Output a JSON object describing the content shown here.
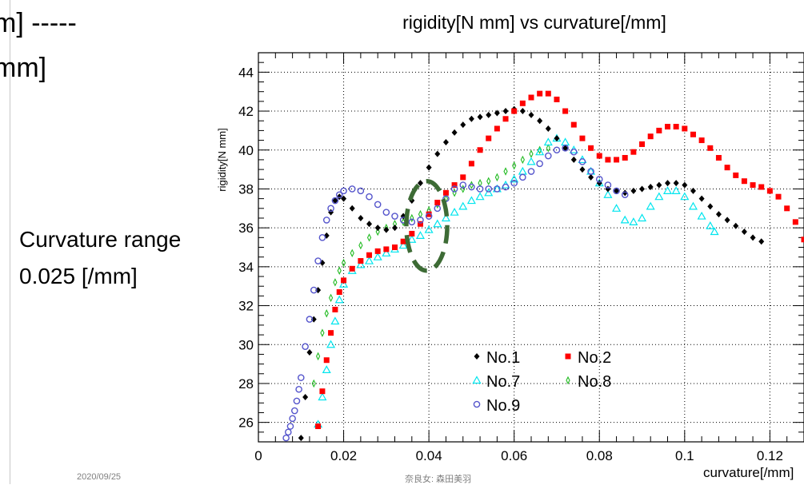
{
  "slide": {
    "fragment_line1": "m] -----",
    "fragment_line2": "mm]",
    "note_line1": "Curvature range",
    "note_line2": "0.025 [/mm]",
    "footer_date": "2020/09/25",
    "footer_author": "奈良女: 森田美羽"
  },
  "chart_data": {
    "type": "scatter",
    "title": "rigidity[N mm] vs curvature[/mm]",
    "xlabel": "curvature[/mm]",
    "ylabel": "rigidity[N mm]",
    "xlim": [
      0,
      0.128
    ],
    "ylim": [
      25,
      45
    ],
    "xticks": [
      0,
      0.02,
      0.04,
      0.06,
      0.08,
      0.1,
      0.12
    ],
    "xtick_labels": [
      "0",
      "0.02",
      "0.04",
      "0.06",
      "0.08",
      "0.1",
      "0.12"
    ],
    "yticks": [
      26,
      28,
      30,
      32,
      34,
      36,
      38,
      40,
      42,
      44
    ],
    "ytick_labels": [
      "26",
      "28",
      "30",
      "32",
      "34",
      "36",
      "38",
      "40",
      "42",
      "44"
    ],
    "grid": true,
    "legend_position": "bottom-center",
    "highlight": {
      "shape": "dashed-ellipse",
      "color": "#3d6b35",
      "cx": 0.0395,
      "cy": 36.1,
      "rx": 0.0048,
      "ry": 2.3
    },
    "series": [
      {
        "name": "No.1",
        "marker": "diamond",
        "color": "#000000",
        "points": [
          [
            0.01,
            25.2
          ],
          [
            0.011,
            27.3
          ],
          [
            0.012,
            29.6
          ],
          [
            0.013,
            31.3
          ],
          [
            0.014,
            32.8
          ],
          [
            0.015,
            34.2
          ],
          [
            0.016,
            35.6
          ],
          [
            0.017,
            36.8
          ],
          [
            0.018,
            37.4
          ],
          [
            0.019,
            37.6
          ],
          [
            0.02,
            37.5
          ],
          [
            0.022,
            37.0
          ],
          [
            0.024,
            36.5
          ],
          [
            0.026,
            36.2
          ],
          [
            0.028,
            36.0
          ],
          [
            0.03,
            35.9
          ],
          [
            0.032,
            36.0
          ],
          [
            0.034,
            36.6
          ],
          [
            0.036,
            37.4
          ],
          [
            0.038,
            38.3
          ],
          [
            0.04,
            39.1
          ],
          [
            0.042,
            39.8
          ],
          [
            0.044,
            40.4
          ],
          [
            0.046,
            40.9
          ],
          [
            0.048,
            41.3
          ],
          [
            0.05,
            41.6
          ],
          [
            0.052,
            41.7
          ],
          [
            0.054,
            41.8
          ],
          [
            0.056,
            41.9
          ],
          [
            0.058,
            42.0
          ],
          [
            0.06,
            42.1
          ],
          [
            0.062,
            42.0
          ],
          [
            0.064,
            41.8
          ],
          [
            0.066,
            41.5
          ],
          [
            0.068,
            41.1
          ],
          [
            0.07,
            40.6
          ],
          [
            0.072,
            40.1
          ],
          [
            0.074,
            39.5
          ],
          [
            0.076,
            39.0
          ],
          [
            0.078,
            38.6
          ],
          [
            0.08,
            38.3
          ],
          [
            0.082,
            38.0
          ],
          [
            0.084,
            37.9
          ],
          [
            0.086,
            37.8
          ],
          [
            0.088,
            37.9
          ],
          [
            0.09,
            38.0
          ],
          [
            0.092,
            38.1
          ],
          [
            0.094,
            38.2
          ],
          [
            0.096,
            38.3
          ],
          [
            0.098,
            38.3
          ],
          [
            0.1,
            38.2
          ],
          [
            0.102,
            37.9
          ],
          [
            0.104,
            37.5
          ],
          [
            0.106,
            37.1
          ],
          [
            0.108,
            36.7
          ],
          [
            0.11,
            36.4
          ],
          [
            0.112,
            36.1
          ],
          [
            0.114,
            35.8
          ],
          [
            0.116,
            35.5
          ],
          [
            0.118,
            35.3
          ]
        ]
      },
      {
        "name": "No.2",
        "marker": "square",
        "color": "#ff0000",
        "points": [
          [
            0.014,
            25.8
          ],
          [
            0.015,
            27.6
          ],
          [
            0.016,
            29.2
          ],
          [
            0.017,
            30.6
          ],
          [
            0.018,
            31.8
          ],
          [
            0.019,
            32.7
          ],
          [
            0.02,
            33.3
          ],
          [
            0.022,
            33.9
          ],
          [
            0.024,
            34.3
          ],
          [
            0.026,
            34.6
          ],
          [
            0.028,
            34.8
          ],
          [
            0.03,
            34.9
          ],
          [
            0.032,
            35.0
          ],
          [
            0.034,
            35.3
          ],
          [
            0.036,
            35.7
          ],
          [
            0.038,
            36.2
          ],
          [
            0.04,
            36.7
          ],
          [
            0.042,
            37.3
          ],
          [
            0.044,
            37.8
          ],
          [
            0.046,
            38.2
          ],
          [
            0.048,
            38.6
          ],
          [
            0.05,
            39.3
          ],
          [
            0.052,
            40.0
          ],
          [
            0.054,
            40.6
          ],
          [
            0.056,
            41.1
          ],
          [
            0.058,
            41.6
          ],
          [
            0.06,
            42.0
          ],
          [
            0.062,
            42.4
          ],
          [
            0.064,
            42.7
          ],
          [
            0.066,
            42.9
          ],
          [
            0.068,
            42.9
          ],
          [
            0.07,
            42.6
          ],
          [
            0.072,
            42.0
          ],
          [
            0.074,
            41.3
          ],
          [
            0.076,
            40.6
          ],
          [
            0.078,
            40.1
          ],
          [
            0.08,
            39.7
          ],
          [
            0.082,
            39.5
          ],
          [
            0.084,
            39.5
          ],
          [
            0.086,
            39.6
          ],
          [
            0.088,
            39.9
          ],
          [
            0.09,
            40.3
          ],
          [
            0.092,
            40.7
          ],
          [
            0.094,
            41.0
          ],
          [
            0.096,
            41.2
          ],
          [
            0.098,
            41.2
          ],
          [
            0.1,
            41.1
          ],
          [
            0.102,
            40.8
          ],
          [
            0.104,
            40.5
          ],
          [
            0.106,
            40.1
          ],
          [
            0.108,
            39.6
          ],
          [
            0.11,
            39.1
          ],
          [
            0.112,
            38.7
          ],
          [
            0.114,
            38.4
          ],
          [
            0.116,
            38.2
          ],
          [
            0.118,
            38.1
          ],
          [
            0.12,
            37.9
          ],
          [
            0.122,
            37.6
          ],
          [
            0.124,
            37.0
          ],
          [
            0.126,
            36.3
          ],
          [
            0.128,
            35.4
          ]
        ]
      },
      {
        "name": "No.7",
        "marker": "triangle",
        "color": "#00e5ee",
        "points": [
          [
            0.014,
            25.9
          ],
          [
            0.015,
            27.3
          ],
          [
            0.016,
            28.7
          ],
          [
            0.017,
            30.0
          ],
          [
            0.018,
            31.2
          ],
          [
            0.019,
            32.3
          ],
          [
            0.02,
            33.1
          ],
          [
            0.022,
            33.8
          ],
          [
            0.024,
            34.1
          ],
          [
            0.026,
            34.3
          ],
          [
            0.028,
            34.5
          ],
          [
            0.03,
            34.7
          ],
          [
            0.032,
            34.9
          ],
          [
            0.034,
            35.1
          ],
          [
            0.036,
            35.4
          ],
          [
            0.038,
            35.6
          ],
          [
            0.04,
            35.9
          ],
          [
            0.042,
            36.2
          ],
          [
            0.044,
            36.5
          ],
          [
            0.046,
            36.8
          ],
          [
            0.048,
            37.1
          ],
          [
            0.05,
            37.4
          ],
          [
            0.052,
            37.6
          ],
          [
            0.054,
            37.8
          ],
          [
            0.056,
            38.0
          ],
          [
            0.058,
            38.2
          ],
          [
            0.06,
            38.5
          ],
          [
            0.062,
            38.9
          ],
          [
            0.064,
            39.4
          ],
          [
            0.066,
            39.9
          ],
          [
            0.068,
            40.4
          ],
          [
            0.07,
            40.6
          ],
          [
            0.072,
            40.4
          ],
          [
            0.074,
            40.0
          ],
          [
            0.076,
            39.5
          ],
          [
            0.078,
            38.9
          ],
          [
            0.08,
            38.3
          ],
          [
            0.082,
            37.7
          ],
          [
            0.084,
            37.0
          ],
          [
            0.086,
            36.4
          ],
          [
            0.088,
            36.3
          ],
          [
            0.09,
            36.5
          ],
          [
            0.092,
            37.1
          ],
          [
            0.094,
            37.6
          ],
          [
            0.096,
            37.9
          ],
          [
            0.098,
            37.9
          ],
          [
            0.1,
            37.6
          ],
          [
            0.102,
            37.1
          ],
          [
            0.104,
            36.6
          ],
          [
            0.106,
            36.1
          ],
          [
            0.107,
            35.8
          ]
        ]
      },
      {
        "name": "No.8",
        "marker": "thin-diamond",
        "color": "#22bb22",
        "points": [
          [
            0.013,
            28.0
          ],
          [
            0.014,
            29.4
          ],
          [
            0.015,
            30.6
          ],
          [
            0.016,
            31.6
          ],
          [
            0.017,
            32.4
          ],
          [
            0.018,
            33.2
          ],
          [
            0.019,
            33.8
          ],
          [
            0.02,
            34.2
          ],
          [
            0.022,
            34.7
          ],
          [
            0.024,
            35.1
          ],
          [
            0.026,
            35.5
          ],
          [
            0.028,
            35.8
          ],
          [
            0.03,
            36.0
          ],
          [
            0.032,
            36.2
          ],
          [
            0.034,
            36.3
          ],
          [
            0.036,
            36.5
          ],
          [
            0.038,
            36.7
          ],
          [
            0.04,
            36.9
          ],
          [
            0.042,
            37.2
          ],
          [
            0.044,
            37.5
          ],
          [
            0.046,
            37.8
          ],
          [
            0.048,
            38.0
          ],
          [
            0.05,
            38.2
          ],
          [
            0.052,
            38.3
          ],
          [
            0.054,
            38.4
          ],
          [
            0.056,
            38.6
          ],
          [
            0.058,
            38.9
          ],
          [
            0.06,
            39.2
          ],
          [
            0.062,
            39.5
          ],
          [
            0.064,
            39.8
          ],
          [
            0.066,
            40.0
          ],
          [
            0.068,
            40.1
          ]
        ]
      },
      {
        "name": "No.9",
        "marker": "circle",
        "color": "#5555cc",
        "points": [
          [
            0.0065,
            25.2
          ],
          [
            0.007,
            25.5
          ],
          [
            0.0075,
            25.8
          ],
          [
            0.008,
            26.2
          ],
          [
            0.0085,
            26.6
          ],
          [
            0.009,
            27.1
          ],
          [
            0.0095,
            27.7
          ],
          [
            0.01,
            28.3
          ],
          [
            0.011,
            29.9
          ],
          [
            0.012,
            31.3
          ],
          [
            0.013,
            32.8
          ],
          [
            0.014,
            34.3
          ],
          [
            0.015,
            35.5
          ],
          [
            0.016,
            36.4
          ],
          [
            0.017,
            37.0
          ],
          [
            0.018,
            37.4
          ],
          [
            0.019,
            37.7
          ],
          [
            0.02,
            37.9
          ],
          [
            0.022,
            38.0
          ],
          [
            0.024,
            37.9
          ],
          [
            0.026,
            37.6
          ],
          [
            0.028,
            37.2
          ],
          [
            0.03,
            36.8
          ],
          [
            0.032,
            36.6
          ],
          [
            0.034,
            36.4
          ],
          [
            0.036,
            36.3
          ],
          [
            0.038,
            36.4
          ],
          [
            0.04,
            36.6
          ],
          [
            0.042,
            37.0
          ],
          [
            0.044,
            37.5
          ],
          [
            0.046,
            38.0
          ],
          [
            0.048,
            38.2
          ],
          [
            0.05,
            38.1
          ],
          [
            0.052,
            38.0
          ],
          [
            0.054,
            38.0
          ],
          [
            0.056,
            38.0
          ],
          [
            0.058,
            38.1
          ],
          [
            0.06,
            38.3
          ],
          [
            0.062,
            38.6
          ],
          [
            0.064,
            38.9
          ],
          [
            0.066,
            39.3
          ],
          [
            0.068,
            39.7
          ],
          [
            0.07,
            40.0
          ],
          [
            0.072,
            40.1
          ],
          [
            0.074,
            39.9
          ],
          [
            0.076,
            39.4
          ],
          [
            0.078,
            38.9
          ],
          [
            0.08,
            38.5
          ],
          [
            0.082,
            38.2
          ],
          [
            0.084,
            37.9
          ],
          [
            0.086,
            37.7
          ]
        ]
      }
    ]
  }
}
